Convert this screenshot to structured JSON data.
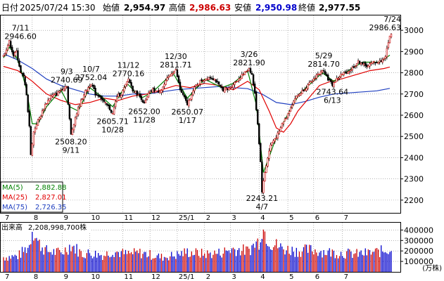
{
  "header": {
    "label_daily": "日付",
    "datetime": "2025/07/24 15:30",
    "label_open": "始値",
    "open": "2,954.97",
    "label_high": "高値",
    "high": "2,986.63",
    "label_low": "安値",
    "low": "2,950.98",
    "label_close": "終値",
    "close": "2,977.55"
  },
  "colors": {
    "up": "#cc0000",
    "down": "#0000cc",
    "price": "#000000",
    "ma5": "#008000",
    "ma25": "#e00000",
    "ma75": "#2040c0",
    "grid": "#888888",
    "high_value": "#cc0000",
    "low_value": "#0000cc"
  },
  "ma_legend": [
    {
      "label": "MA(5)",
      "value": "2,882.88",
      "color": "#008000"
    },
    {
      "label": "MA(25)",
      "value": "2,827.01",
      "color": "#e00000"
    },
    {
      "label": "MA(75)",
      "value": "2,726.35",
      "color": "#2040c0"
    }
  ],
  "volume_title": "出来高",
  "volume_value": "2,208,998,700株",
  "volume_unit": "(万株)",
  "chart_data": {
    "type": "line",
    "price_axis": {
      "ylim": [
        2140,
        3070
      ],
      "ticks": [
        2200,
        2300,
        2400,
        2500,
        2600,
        2700,
        2800,
        2900,
        3000
      ]
    },
    "volume_axis": {
      "ylim": [
        0,
        470000
      ],
      "ticks": [
        100000,
        200000,
        300000,
        400000
      ]
    },
    "x_range": [
      0,
      270
    ],
    "x_month_labels": [
      {
        "x": 0,
        "label": "7"
      },
      {
        "x": 20,
        "label": "8"
      },
      {
        "x": 41,
        "label": "9"
      },
      {
        "x": 60,
        "label": "10"
      },
      {
        "x": 83,
        "label": "11"
      },
      {
        "x": 102,
        "label": "12"
      },
      {
        "x": 121,
        "label": "25/1"
      },
      {
        "x": 140,
        "label": "2"
      },
      {
        "x": 158,
        "label": "3"
      },
      {
        "x": 178,
        "label": "4"
      },
      {
        "x": 198,
        "label": "5"
      },
      {
        "x": 216,
        "label": "6"
      },
      {
        "x": 236,
        "label": "7"
      }
    ],
    "annotations": [
      {
        "x": 4,
        "y": 2946.6,
        "date": "7/11",
        "value": "2946.60",
        "pos": "above"
      },
      {
        "x": 44,
        "y": 2740.69,
        "date": "9/3",
        "value": "2740.69",
        "pos": "above"
      },
      {
        "x": 47,
        "y": 2508.2,
        "date": "9/11",
        "value": "2508.20",
        "pos": "below"
      },
      {
        "x": 61,
        "y": 2752.04,
        "date": "10/7",
        "value": "2752.04",
        "pos": "above"
      },
      {
        "x": 76,
        "y": 2605.71,
        "date": "10/28",
        "value": "2605.71",
        "pos": "below"
      },
      {
        "x": 87,
        "y": 2770.16,
        "date": "11/12",
        "value": "2770.16",
        "pos": "above"
      },
      {
        "x": 98,
        "y": 2652.0,
        "date": "11/28",
        "value": "2652.00",
        "pos": "below"
      },
      {
        "x": 120,
        "y": 2811.71,
        "date": "12/30",
        "value": "2811.71",
        "pos": "above"
      },
      {
        "x": 128,
        "y": 2650.07,
        "date": "1/17",
        "value": "2650.07",
        "pos": "below"
      },
      {
        "x": 171,
        "y": 2821.9,
        "date": "3/26",
        "value": "2821.90",
        "pos": "above"
      },
      {
        "x": 180,
        "y": 2243.21,
        "date": "4/7",
        "value": "2243.21",
        "pos": "below"
      },
      {
        "x": 223,
        "y": 2814.7,
        "date": "5/29",
        "value": "2814.70",
        "pos": "above"
      },
      {
        "x": 229,
        "y": 2743.64,
        "date": "6/13",
        "value": "2743.64",
        "pos": "below"
      },
      {
        "x": 269,
        "y": 2986.63,
        "date": "7/24",
        "value": "2986.63",
        "pos": "above"
      }
    ],
    "price_keypoints": [
      [
        0,
        2880
      ],
      [
        4,
        2946.6
      ],
      [
        7,
        2880
      ],
      [
        9,
        2900
      ],
      [
        12,
        2800
      ],
      [
        14,
        2780
      ],
      [
        16,
        2700
      ],
      [
        17,
        2620
      ],
      [
        18,
        2550
      ],
      [
        19,
        2410
      ],
      [
        20,
        2470
      ],
      [
        21,
        2520
      ],
      [
        23,
        2560
      ],
      [
        26,
        2600
      ],
      [
        29,
        2650
      ],
      [
        33,
        2690
      ],
      [
        37,
        2700
      ],
      [
        40,
        2720
      ],
      [
        44,
        2740.69
      ],
      [
        45,
        2650
      ],
      [
        47,
        2508.2
      ],
      [
        50,
        2590
      ],
      [
        53,
        2650
      ],
      [
        56,
        2700
      ],
      [
        59,
        2730
      ],
      [
        61,
        2752.04
      ],
      [
        64,
        2700
      ],
      [
        67,
        2690
      ],
      [
        70,
        2660
      ],
      [
        73,
        2640
      ],
      [
        76,
        2605.71
      ],
      [
        79,
        2690
      ],
      [
        82,
        2700
      ],
      [
        85,
        2740
      ],
      [
        87,
        2770.16
      ],
      [
        90,
        2720
      ],
      [
        93,
        2700
      ],
      [
        96,
        2680
      ],
      [
        98,
        2652
      ],
      [
        101,
        2700
      ],
      [
        104,
        2720
      ],
      [
        107,
        2710
      ],
      [
        110,
        2720
      ],
      [
        114,
        2770
      ],
      [
        117,
        2800
      ],
      [
        120,
        2811.71
      ],
      [
        123,
        2720
      ],
      [
        126,
        2680
      ],
      [
        128,
        2650.07
      ],
      [
        131,
        2700
      ],
      [
        134,
        2740
      ],
      [
        137,
        2760
      ],
      [
        140,
        2770
      ],
      [
        143,
        2780
      ],
      [
        147,
        2770
      ],
      [
        150,
        2740
      ],
      [
        153,
        2720
      ],
      [
        156,
        2720
      ],
      [
        159,
        2740
      ],
      [
        162,
        2760
      ],
      [
        165,
        2780
      ],
      [
        168,
        2800
      ],
      [
        171,
        2821.9
      ],
      [
        173,
        2790
      ],
      [
        175,
        2700
      ],
      [
        177,
        2560
      ],
      [
        179,
        2380
      ],
      [
        180,
        2243.21
      ],
      [
        182,
        2330
      ],
      [
        184,
        2400
      ],
      [
        186,
        2460
      ],
      [
        188,
        2480
      ],
      [
        190,
        2500
      ],
      [
        192,
        2520
      ],
      [
        194,
        2560
      ],
      [
        197,
        2590
      ],
      [
        200,
        2640
      ],
      [
        203,
        2680
      ],
      [
        206,
        2700
      ],
      [
        209,
        2720
      ],
      [
        212,
        2740
      ],
      [
        215,
        2760
      ],
      [
        218,
        2790
      ],
      [
        221,
        2800
      ],
      [
        223,
        2814.7
      ],
      [
        226,
        2770
      ],
      [
        229,
        2743.64
      ],
      [
        232,
        2770
      ],
      [
        235,
        2790
      ],
      [
        238,
        2800
      ],
      [
        241,
        2810
      ],
      [
        244,
        2830
      ],
      [
        247,
        2850
      ],
      [
        249,
        2850
      ],
      [
        252,
        2830
      ],
      [
        255,
        2840
      ],
      [
        258,
        2850
      ],
      [
        261,
        2850
      ],
      [
        264,
        2860
      ],
      [
        266,
        2880
      ],
      [
        268,
        2940
      ],
      [
        269,
        2977.55
      ]
    ],
    "ma25_keypoints": [
      [
        0,
        2830
      ],
      [
        10,
        2810
      ],
      [
        20,
        2760
      ],
      [
        30,
        2700
      ],
      [
        40,
        2670
      ],
      [
        50,
        2650
      ],
      [
        60,
        2660
      ],
      [
        70,
        2680
      ],
      [
        80,
        2670
      ],
      [
        90,
        2690
      ],
      [
        100,
        2700
      ],
      [
        110,
        2720
      ],
      [
        120,
        2740
      ],
      [
        130,
        2730
      ],
      [
        140,
        2750
      ],
      [
        150,
        2740
      ],
      [
        160,
        2720
      ],
      [
        170,
        2760
      ],
      [
        178,
        2720
      ],
      [
        185,
        2620
      ],
      [
        190,
        2540
      ],
      [
        195,
        2520
      ],
      [
        200,
        2560
      ],
      [
        205,
        2620
      ],
      [
        210,
        2660
      ],
      [
        215,
        2700
      ],
      [
        220,
        2740
      ],
      [
        228,
        2760
      ],
      [
        235,
        2770
      ],
      [
        245,
        2790
      ],
      [
        255,
        2810
      ],
      [
        265,
        2820
      ],
      [
        269,
        2827.01
      ]
    ],
    "ma75_keypoints": [
      [
        0,
        2890
      ],
      [
        10,
        2860
      ],
      [
        20,
        2820
      ],
      [
        30,
        2770
      ],
      [
        40,
        2740
      ],
      [
        50,
        2720
      ],
      [
        60,
        2700
      ],
      [
        70,
        2690
      ],
      [
        80,
        2690
      ],
      [
        90,
        2700
      ],
      [
        100,
        2700
      ],
      [
        110,
        2710
      ],
      [
        120,
        2720
      ],
      [
        130,
        2725
      ],
      [
        140,
        2730
      ],
      [
        150,
        2735
      ],
      [
        160,
        2730
      ],
      [
        170,
        2725
      ],
      [
        180,
        2700
      ],
      [
        190,
        2660
      ],
      [
        200,
        2650
      ],
      [
        210,
        2665
      ],
      [
        220,
        2685
      ],
      [
        230,
        2700
      ],
      [
        240,
        2705
      ],
      [
        250,
        2710
      ],
      [
        260,
        2715
      ],
      [
        269,
        2726.35
      ]
    ],
    "ma5_keypoints": [
      [
        0,
        2870
      ],
      [
        4,
        2920
      ],
      [
        8,
        2890
      ],
      [
        12,
        2820
      ],
      [
        16,
        2720
      ],
      [
        20,
        2560
      ],
      [
        24,
        2560
      ],
      [
        30,
        2640
      ],
      [
        40,
        2720
      ],
      [
        46,
        2640
      ],
      [
        52,
        2620
      ],
      [
        60,
        2730
      ],
      [
        68,
        2690
      ],
      [
        76,
        2640
      ],
      [
        86,
        2750
      ],
      [
        96,
        2680
      ],
      [
        104,
        2710
      ],
      [
        118,
        2800
      ],
      [
        128,
        2680
      ],
      [
        140,
        2770
      ],
      [
        152,
        2730
      ],
      [
        160,
        2750
      ],
      [
        170,
        2810
      ],
      [
        176,
        2650
      ],
      [
        181,
        2330
      ],
      [
        188,
        2460
      ],
      [
        196,
        2580
      ],
      [
        206,
        2700
      ],
      [
        222,
        2800
      ],
      [
        230,
        2760
      ],
      [
        240,
        2810
      ],
      [
        250,
        2850
      ],
      [
        262,
        2850
      ],
      [
        269,
        2882.88
      ]
    ],
    "volume_keypoints": [
      [
        0,
        140000
      ],
      [
        10,
        150000
      ],
      [
        18,
        250000
      ],
      [
        20,
        420000
      ],
      [
        22,
        380000
      ],
      [
        24,
        280000
      ],
      [
        30,
        200000
      ],
      [
        40,
        180000
      ],
      [
        44,
        220000
      ],
      [
        47,
        260000
      ],
      [
        55,
        170000
      ],
      [
        60,
        180000
      ],
      [
        70,
        160000
      ],
      [
        76,
        200000
      ],
      [
        85,
        170000
      ],
      [
        95,
        180000
      ],
      [
        100,
        170000
      ],
      [
        110,
        140000
      ],
      [
        120,
        160000
      ],
      [
        128,
        190000
      ],
      [
        140,
        170000
      ],
      [
        150,
        180000
      ],
      [
        160,
        220000
      ],
      [
        170,
        200000
      ],
      [
        178,
        300000
      ],
      [
        180,
        430000
      ],
      [
        182,
        380000
      ],
      [
        186,
        280000
      ],
      [
        195,
        220000
      ],
      [
        205,
        200000
      ],
      [
        215,
        210000
      ],
      [
        225,
        190000
      ],
      [
        235,
        180000
      ],
      [
        245,
        170000
      ],
      [
        255,
        180000
      ],
      [
        265,
        200000
      ],
      [
        269,
        220000
      ]
    ]
  }
}
